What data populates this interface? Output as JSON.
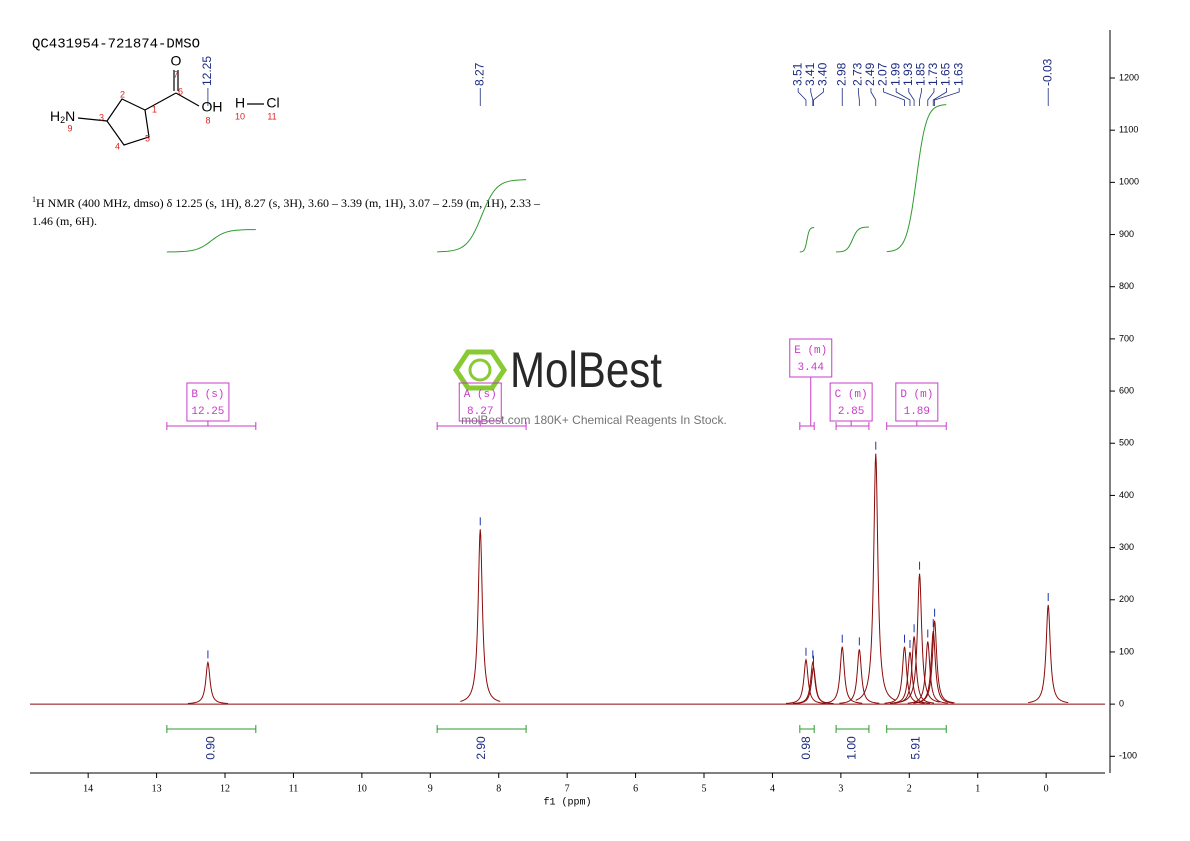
{
  "title": "QC431954-721874-DMSO",
  "structure": {
    "atoms": [
      "O",
      "OH",
      "H",
      "Cl"
    ],
    "amine": [
      "H",
      "2",
      "N"
    ],
    "numbers": [
      "1",
      "2",
      "3",
      "4",
      "5",
      "6",
      "7",
      "8",
      "9",
      "10",
      "11"
    ]
  },
  "description": {
    "sup": "1",
    "lines": [
      "H NMR (400 MHz, dmso) δ 12.25 (s, 1H), 8.27 (s, 3H), 3.60 – 3.39 (m, 1H), 3.07 – 2.59 (m, 1H), 2.33 –",
      "1.46 (m, 6H)."
    ]
  },
  "watermark": {
    "logo": "MolBest",
    "tagline": "molBest.com 180K+ Chemical Reagents In Stock."
  },
  "chart_data": {
    "type": "nmr",
    "x_label": "f1 (ppm)",
    "xlim": [
      14.85,
      -0.86
    ],
    "xticks": [
      14,
      13,
      12,
      11,
      10,
      9,
      8,
      7,
      6,
      5,
      4,
      3,
      2,
      1,
      0
    ],
    "ylim": [
      -132,
      1292
    ],
    "yticks": [
      -100,
      0,
      100,
      200,
      300,
      400,
      500,
      600,
      700,
      800,
      900,
      1000,
      1100,
      1200
    ],
    "peaks": {
      "ppm": [
        12.25,
        8.27,
        3.51,
        3.41,
        {
          "value": 3.4,
          "label": "3.40"
        },
        2.98,
        2.73,
        2.49,
        2.07,
        1.99,
        1.93,
        1.85,
        1.73,
        1.65,
        1.63,
        -0.03
      ],
      "intensity": [
        80,
        335,
        85,
        80,
        70,
        110,
        105,
        480,
        110,
        100,
        130,
        250,
        120,
        140,
        160,
        190
      ]
    },
    "integrals": [
      {
        "multiplet": "B (s)",
        "shift": 12.25,
        "range": [
          12.85,
          11.55
        ],
        "value": {
          "value": 0.9,
          "label": "0.90"
        }
      },
      {
        "multiplet": "A (s)",
        "shift": 8.27,
        "range": [
          8.9,
          7.6
        ],
        "value": {
          "value": 2.9,
          "label": "2.90"
        }
      },
      {
        "multiplet": "E (m)",
        "shift": 3.44,
        "range": [
          3.6,
          3.39
        ],
        "value": 0.98
      },
      {
        "multiplet": "C (m)",
        "shift": 2.85,
        "range": [
          3.07,
          2.59
        ],
        "value": {
          "value": 1,
          "label": "1.00"
        }
      },
      {
        "multiplet": "D (m)",
        "shift": 1.89,
        "range": [
          2.33,
          1.46
        ],
        "value": 5.91
      }
    ],
    "colors": {
      "spectrum": "#8b0a0a",
      "integral": "#2e9a2e",
      "multiplet": "#c83cc8",
      "peak_label": "#1c2a80"
    }
  }
}
